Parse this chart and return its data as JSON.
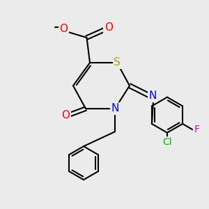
{
  "bg_color": "#ebebeb",
  "bond_color": "#000000",
  "bond_lw": 1.5,
  "atom_colors": {
    "O": "#ff0000",
    "N": "#0000ff",
    "S": "#aaaa00",
    "Cl": "#00bb00",
    "F": "#cc00cc",
    "C": "#000000"
  },
  "font_size": 9,
  "fig_w": 3.0,
  "fig_h": 3.0,
  "dpi": 100
}
